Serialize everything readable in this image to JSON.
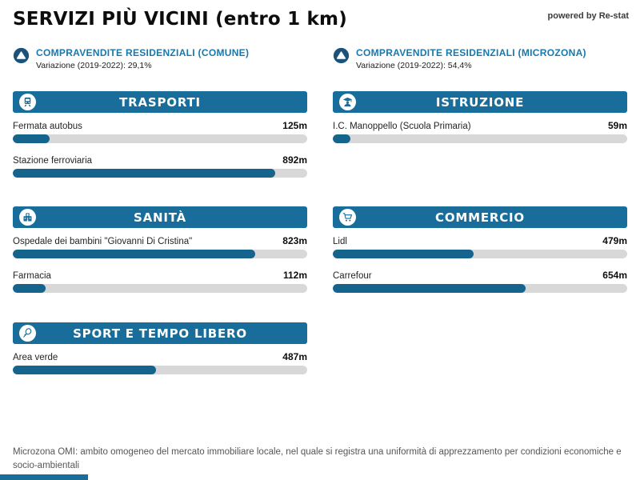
{
  "page": {
    "title": "SERVIZI PIÙ VICINI (entro 1 km)",
    "powered_by": "powered by Re-stat",
    "footer_note": "Microzona OMI: ambito omogeneo del mercato immobiliare locale, nel quale si registra una uniformità di apprezzamento per condizioni economiche e socio-ambientali"
  },
  "badges": [
    {
      "icon": "triangle-up-icon",
      "title": "COMPRAVENDITE RESIDENZIALI (COMUNE)",
      "subtitle": "Variazione (2019-2022): 29,1%"
    },
    {
      "icon": "triangle-up-icon",
      "title": "COMPRAVENDITE RESIDENZIALI (MICROZONA)",
      "subtitle": "Variazione (2019-2022): 54,4%"
    }
  ],
  "colors": {
    "header_blue": "#186d9b",
    "bar_fill": "#15648e",
    "bar_track": "#d8d8d8",
    "accent_text_blue": "#1778ad",
    "badge_circle": "#1b527a"
  },
  "chart_data": {
    "type": "bar",
    "orientation": "horizontal",
    "unit": "m",
    "axis_max": 1000,
    "title": "SERVIZI PIÙ VICINI (entro 1 km)",
    "sections": [
      {
        "name": "TRASPORTI",
        "icon": "train-icon",
        "items": [
          {
            "label": "Fermata autobus",
            "value": 125,
            "display": "125m"
          },
          {
            "label": "Stazione ferroviaria",
            "value": 892,
            "display": "892m"
          }
        ]
      },
      {
        "name": "ISTRUZIONE",
        "icon": "graduate-icon",
        "items": [
          {
            "label": "I.C. Manoppello (Scuola Primaria)",
            "value": 59,
            "display": "59m"
          }
        ]
      },
      {
        "name": "SANITÀ",
        "icon": "hospital-icon",
        "items": [
          {
            "label": "Ospedale dei bambini \"Giovanni Di Cristina\"",
            "value": 823,
            "display": "823m"
          },
          {
            "label": "Farmacia",
            "value": 112,
            "display": "112m"
          }
        ]
      },
      {
        "name": "COMMERCIO",
        "icon": "cart-icon",
        "items": [
          {
            "label": "Lidl",
            "value": 479,
            "display": "479m"
          },
          {
            "label": "Carrefour",
            "value": 654,
            "display": "654m"
          }
        ]
      },
      {
        "name": "SPORT E TEMPO LIBERO",
        "icon": "tennis-racket-icon",
        "items": [
          {
            "label": "Area verde",
            "value": 487,
            "display": "487m"
          }
        ]
      }
    ]
  }
}
